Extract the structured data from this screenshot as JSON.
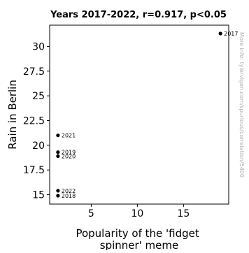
{
  "chart_data": {
    "type": "scatter",
    "title": "Years 2017-2022, r=0.917, p<0.05",
    "xlabel": "Popularity of the 'fidget spinner' meme",
    "ylabel": "Rain in Berlin",
    "xlim": [
      0.5,
      19.9
    ],
    "ylim": [
      14.05,
      32.15
    ],
    "xticks": [
      5,
      10,
      15
    ],
    "yticks": [
      15,
      17.5,
      20,
      22.5,
      25,
      27.5,
      30
    ],
    "ytick_labels": [
      "15",
      "17.5",
      "20",
      "22.5",
      "25",
      "27.5",
      "30"
    ],
    "grid": false,
    "side_note": "More info: tylervigen.com/spurious/correlation/5400",
    "points": [
      {
        "label": "2017",
        "x": 19.0,
        "y": 31.3
      },
      {
        "label": "2018",
        "x": 1.4,
        "y": 14.9
      },
      {
        "label": "2019",
        "x": 1.4,
        "y": 19.3
      },
      {
        "label": "2020",
        "x": 1.4,
        "y": 18.9
      },
      {
        "label": "2021",
        "x": 1.4,
        "y": 21.0
      },
      {
        "label": "2022",
        "x": 1.4,
        "y": 15.4
      }
    ]
  }
}
